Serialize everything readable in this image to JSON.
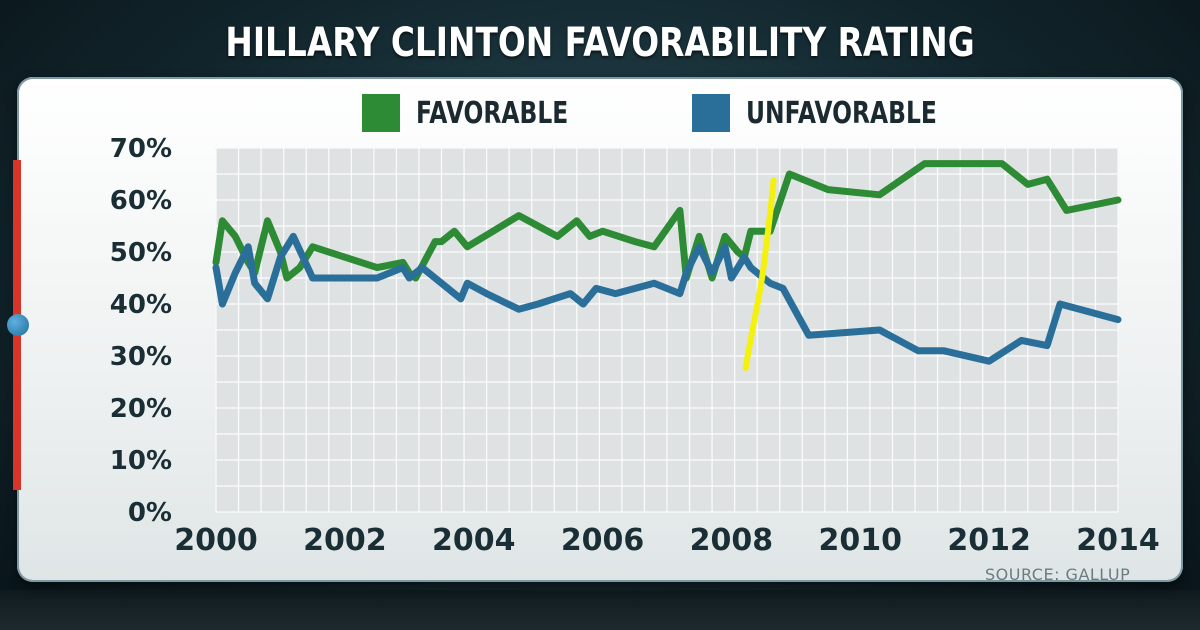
{
  "chart_data": {
    "type": "line",
    "title": "HILLARY CLINTON FAVORABILITY RATING",
    "source": "SOURCE: GALLUP",
    "xlim": [
      2000,
      2014
    ],
    "ylim": [
      0,
      70
    ],
    "x_ticks": [
      "2000",
      "2002",
      "2004",
      "2006",
      "2008",
      "2010",
      "2012",
      "2014"
    ],
    "y_ticks": [
      "0%",
      "10%",
      "20%",
      "30%",
      "40%",
      "50%",
      "60%",
      "70%"
    ],
    "grid": true,
    "legend_position": "top",
    "annotation": "yellow hand-drawn vertical line near 2008.5",
    "annotation_x": 2008.5,
    "series": [
      {
        "name": "FAVORABLE",
        "color": "#2e8b35",
        "points": [
          [
            2000.0,
            48
          ],
          [
            2000.1,
            56
          ],
          [
            2000.3,
            53
          ],
          [
            2000.5,
            48
          ],
          [
            2000.6,
            46
          ],
          [
            2000.8,
            56
          ],
          [
            2001.0,
            50
          ],
          [
            2001.1,
            45
          ],
          [
            2001.3,
            47
          ],
          [
            2001.5,
            51
          ],
          [
            2002.0,
            49
          ],
          [
            2002.5,
            47
          ],
          [
            2002.9,
            48
          ],
          [
            2003.0,
            46
          ],
          [
            2003.1,
            45
          ],
          [
            2003.4,
            52
          ],
          [
            2003.5,
            52
          ],
          [
            2003.7,
            54
          ],
          [
            2003.9,
            51
          ],
          [
            2004.3,
            54
          ],
          [
            2004.7,
            57
          ],
          [
            2005.0,
            55
          ],
          [
            2005.3,
            53
          ],
          [
            2005.6,
            56
          ],
          [
            2005.8,
            53
          ],
          [
            2006.0,
            54
          ],
          [
            2006.5,
            52
          ],
          [
            2006.8,
            51
          ],
          [
            2007.2,
            58
          ],
          [
            2007.3,
            45
          ],
          [
            2007.5,
            53
          ],
          [
            2007.7,
            45
          ],
          [
            2007.9,
            53
          ],
          [
            2008.1,
            50
          ],
          [
            2008.2,
            49
          ],
          [
            2008.3,
            54
          ],
          [
            2008.6,
            54
          ],
          [
            2008.9,
            65
          ],
          [
            2009.5,
            62
          ],
          [
            2010.3,
            61
          ],
          [
            2011.0,
            67
          ],
          [
            2011.5,
            67
          ],
          [
            2012.2,
            67
          ],
          [
            2012.6,
            63
          ],
          [
            2012.9,
            64
          ],
          [
            2013.2,
            58
          ],
          [
            2014.0,
            60
          ]
        ]
      },
      {
        "name": "UNFAVORABLE",
        "color": "#2a6f9a",
        "points": [
          [
            2000.0,
            47
          ],
          [
            2000.1,
            40
          ],
          [
            2000.3,
            46
          ],
          [
            2000.5,
            51
          ],
          [
            2000.6,
            44
          ],
          [
            2000.8,
            41
          ],
          [
            2001.0,
            49
          ],
          [
            2001.2,
            53
          ],
          [
            2001.5,
            45
          ],
          [
            2002.0,
            45
          ],
          [
            2002.5,
            45
          ],
          [
            2002.9,
            47
          ],
          [
            2003.0,
            45
          ],
          [
            2003.2,
            47
          ],
          [
            2003.6,
            43
          ],
          [
            2003.8,
            41
          ],
          [
            2003.9,
            44
          ],
          [
            2004.2,
            42
          ],
          [
            2004.7,
            39
          ],
          [
            2005.0,
            40
          ],
          [
            2005.5,
            42
          ],
          [
            2005.7,
            40
          ],
          [
            2005.9,
            43
          ],
          [
            2006.2,
            42
          ],
          [
            2006.8,
            44
          ],
          [
            2007.2,
            42
          ],
          [
            2007.3,
            46
          ],
          [
            2007.5,
            51
          ],
          [
            2007.7,
            46
          ],
          [
            2007.9,
            51
          ],
          [
            2008.0,
            45
          ],
          [
            2008.2,
            49
          ],
          [
            2008.3,
            47
          ],
          [
            2008.6,
            44
          ],
          [
            2008.8,
            43
          ],
          [
            2009.2,
            34
          ],
          [
            2010.3,
            35
          ],
          [
            2010.9,
            31
          ],
          [
            2011.3,
            31
          ],
          [
            2012.0,
            29
          ],
          [
            2012.5,
            33
          ],
          [
            2012.9,
            32
          ],
          [
            2013.1,
            40
          ],
          [
            2014.0,
            37
          ]
        ]
      }
    ]
  }
}
